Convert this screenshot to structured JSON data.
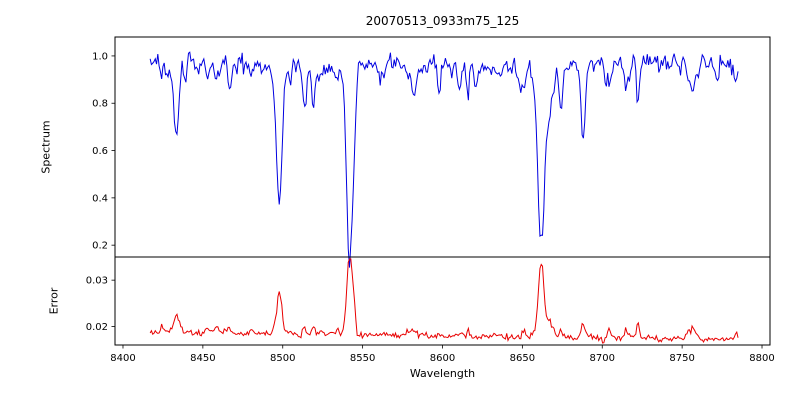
{
  "chart_data": {
    "type": "line",
    "title": "20070513_0933m75_125",
    "xlabel": "Wavelength",
    "seed": 20070513,
    "x_range": [
      8417,
      8785
    ],
    "xlim": [
      8395,
      8805
    ],
    "xtick_values": [
      8400,
      8450,
      8500,
      8550,
      8600,
      8650,
      8700,
      8750,
      8800
    ],
    "xtick_labels": [
      "8400",
      "8450",
      "8500",
      "8550",
      "8600",
      "8650",
      "8700",
      "8750",
      "8800"
    ],
    "panels": [
      {
        "ylabel": "Spectrum",
        "color": "#0000e0",
        "ylim": [
          0.15,
          1.08
        ],
        "ytick_values": [
          0.2,
          0.4,
          0.6,
          0.8,
          1.0
        ],
        "ytick_labels": [
          "0.2",
          "0.4",
          "0.6",
          "0.8",
          "1.0"
        ],
        "continuum": 0.965,
        "noise_sigma": 0.018,
        "absorption_lines": [
          {
            "center": 8427,
            "depth": 0.06,
            "sigma": 1.0
          },
          {
            "center": 8433,
            "depth": 0.28,
            "sigma": 1.3
          },
          {
            "center": 8439,
            "depth": 0.1,
            "sigma": 1.0
          },
          {
            "center": 8447,
            "depth": 0.06,
            "sigma": 0.9
          },
          {
            "center": 8467,
            "depth": 0.12,
            "sigma": 1.1
          },
          {
            "center": 8480,
            "depth": 0.05,
            "sigma": 0.9
          },
          {
            "center": 8498,
            "depth": 0.555,
            "sigma": 1.7
          },
          {
            "center": 8514,
            "depth": 0.14,
            "sigma": 1.0
          },
          {
            "center": 8519,
            "depth": 0.16,
            "sigma": 1.0
          },
          {
            "center": 8542,
            "depth": 0.76,
            "sigma": 2.0
          },
          {
            "center": 8560,
            "depth": 0.05,
            "sigma": 0.9
          },
          {
            "center": 8582,
            "depth": 0.08,
            "sigma": 1.0
          },
          {
            "center": 8598,
            "depth": 0.1,
            "sigma": 1.1
          },
          {
            "center": 8611,
            "depth": 0.06,
            "sigma": 0.9
          },
          {
            "center": 8621,
            "depth": 0.09,
            "sigma": 1.0
          },
          {
            "center": 8648,
            "depth": 0.07,
            "sigma": 0.9
          },
          {
            "center": 8662,
            "depth": 0.72,
            "sigma": 1.9
          },
          {
            "center": 8674,
            "depth": 0.17,
            "sigma": 1.1
          },
          {
            "center": 8688,
            "depth": 0.3,
            "sigma": 1.3
          },
          {
            "center": 8702,
            "depth": 0.05,
            "sigma": 0.9
          },
          {
            "center": 8718,
            "depth": 0.06,
            "sigma": 0.9
          },
          {
            "center": 8736,
            "depth": 0.05,
            "sigma": 0.9
          },
          {
            "center": 8757,
            "depth": 0.07,
            "sigma": 0.9
          },
          {
            "center": 8772,
            "depth": 0.05,
            "sigma": 0.9
          }
        ]
      },
      {
        "ylabel": "Error",
        "color": "#e80000",
        "ylim": [
          0.016,
          0.035
        ],
        "ytick_values": [
          0.02,
          0.03
        ],
        "ytick_labels": [
          "0.02",
          "0.03"
        ],
        "baseline_start": 0.0187,
        "baseline_end": 0.0171,
        "noise_sigma": 0.00035,
        "clip_top": 0.0346,
        "peaks": [
          {
            "center": 8433,
            "height": 0.003,
            "sigma": 1.3
          },
          {
            "center": 8467,
            "height": 0.0012,
            "sigma": 1.1
          },
          {
            "center": 8498,
            "height": 0.0085,
            "sigma": 1.5
          },
          {
            "center": 8514,
            "height": 0.0012,
            "sigma": 1.0
          },
          {
            "center": 8519,
            "height": 0.0012,
            "sigma": 1.0
          },
          {
            "center": 8542,
            "height": 0.0165,
            "sigma": 1.8
          },
          {
            "center": 8598,
            "height": 0.0008,
            "sigma": 1.0
          },
          {
            "center": 8662,
            "height": 0.016,
            "sigma": 1.7
          },
          {
            "center": 8674,
            "height": 0.0015,
            "sigma": 1.0
          },
          {
            "center": 8688,
            "height": 0.0032,
            "sigma": 1.2
          },
          {
            "center": 8757,
            "height": 0.001,
            "sigma": 0.9
          }
        ]
      }
    ]
  }
}
